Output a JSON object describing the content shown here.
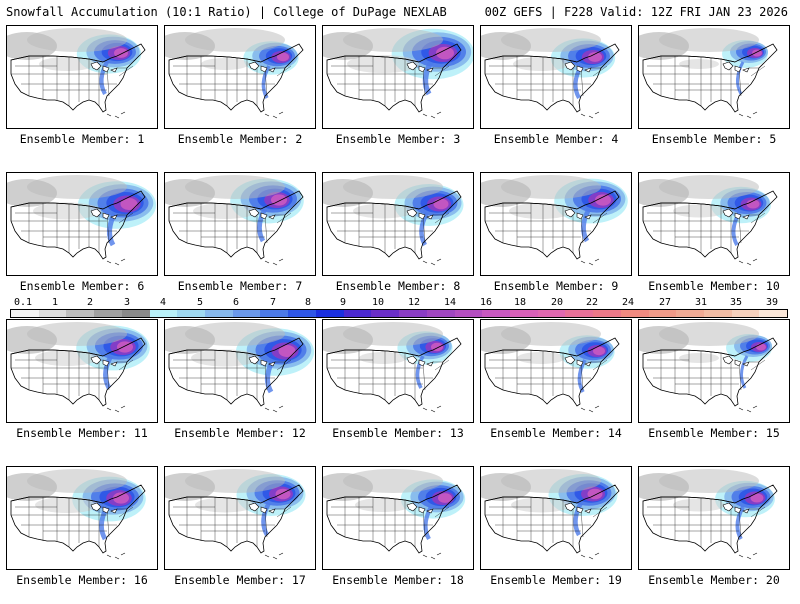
{
  "header": {
    "title": "Snowfall Accumulation (10:1 Ratio) | College of DuPage NEXLAB",
    "run_info": "00Z GEFS | F228 Valid: 12Z FRI JAN 23 2026"
  },
  "panels": [
    {
      "caption": "Ensemble Member: 1",
      "intensity": 0.7
    },
    {
      "caption": "Ensemble Member: 2",
      "intensity": 0.6
    },
    {
      "caption": "Ensemble Member: 3",
      "intensity": 0.9
    },
    {
      "caption": "Ensemble Member: 4",
      "intensity": 0.7
    },
    {
      "caption": "Ensemble Member: 5",
      "intensity": 0.5
    },
    {
      "caption": "Ensemble Member: 6",
      "intensity": 0.85
    },
    {
      "caption": "Ensemble Member: 7",
      "intensity": 0.8
    },
    {
      "caption": "Ensemble Member: 8",
      "intensity": 0.75
    },
    {
      "caption": "Ensemble Member: 9",
      "intensity": 0.8
    },
    {
      "caption": "Ensemble Member: 10",
      "intensity": 0.65
    },
    {
      "caption": "Ensemble Member: 11",
      "intensity": 0.8
    },
    {
      "caption": "Ensemble Member: 12",
      "intensity": 0.85
    },
    {
      "caption": "Ensemble Member: 13",
      "intensity": 0.6
    },
    {
      "caption": "Ensemble Member: 14",
      "intensity": 0.6
    },
    {
      "caption": "Ensemble Member: 15",
      "intensity": 0.5
    },
    {
      "caption": "Ensemble Member: 16",
      "intensity": 0.8
    },
    {
      "caption": "Ensemble Member: 17",
      "intensity": 0.75
    },
    {
      "caption": "Ensemble Member: 18",
      "intensity": 0.7
    },
    {
      "caption": "Ensemble Member: 19",
      "intensity": 0.75
    },
    {
      "caption": "Ensemble Member: 20",
      "intensity": 0.65
    }
  ],
  "colorbar": {
    "labels": [
      "0.1",
      "1",
      "2",
      "3",
      "4",
      "5",
      "6",
      "7",
      "8",
      "9",
      "10",
      "12",
      "14",
      "16",
      "18",
      "20",
      "22",
      "24",
      "27",
      "31",
      "35",
      "39"
    ],
    "colors": [
      "#f4f4f4",
      "#dcdcdc",
      "#bebebe",
      "#a0a0a0",
      "#8a8a8a",
      "#b8f0f8",
      "#9ed8f0",
      "#86b8ec",
      "#6a98ea",
      "#4c7ae8",
      "#2e56e6",
      "#1a2fe0",
      "#4a28d0",
      "#6a2ec8",
      "#8a3cc4",
      "#a046c0",
      "#b44ec0",
      "#c858c0",
      "#d860b8",
      "#e068b0",
      "#e87098",
      "#ec7888",
      "#f08a80",
      "#f09a88",
      "#f0aa94",
      "#f2bca4",
      "#f6d0bc",
      "#fae6d8"
    ]
  }
}
